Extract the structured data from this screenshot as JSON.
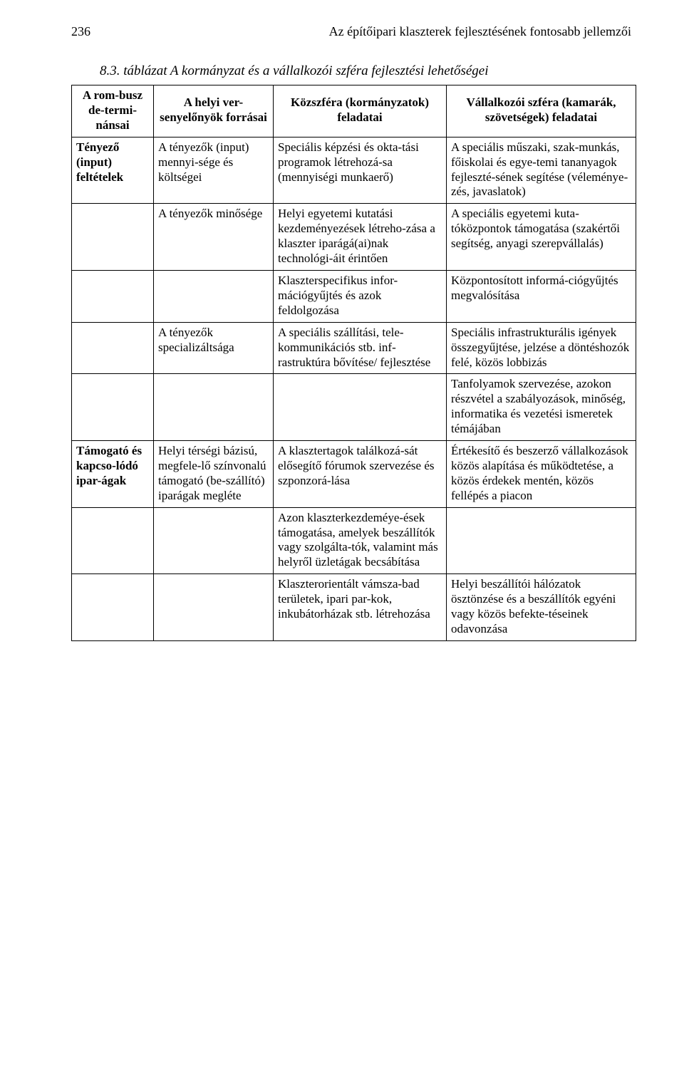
{
  "page_number": "236",
  "running_title": "Az építőipari klaszterek fejlesztésének fontosabb jellemzői",
  "caption": "8.3. táblázat A kormányzat és a vállalkozói szféra fejlesztési lehetőségei",
  "headers": {
    "col0": "A rom-busz de-termi-nánsai",
    "col1": "A helyi ver-senyelőnyök forrásai",
    "col2": "Közszféra (kormányzatok) feladatai",
    "col3": "Vállalkozói szféra (kamarák, szövetségek) feladatai"
  },
  "rows": [
    {
      "c0": "Tényező (input) feltételek",
      "c1": "A tényezők (input) mennyi-sége és költségei",
      "c2": "Speciális képzési és okta-tási programok létrehozá-sa (mennyiségi munkaerő)",
      "c3": "A speciális műszaki, szak-munkás, főiskolai és egye-temi tananyagok fejleszté-sének segítése (véleménye-zés, javaslatok)"
    },
    {
      "c0": "",
      "c1": "A tényezők minősége",
      "c2": "Helyi egyetemi kutatási kezdeményezések létreho-zása a klaszter iparágá(ai)nak technológi-áit érintően",
      "c3": "A speciális egyetemi kuta-tóközpontok támogatása (szakértői segítség, anyagi szerepvállalás)"
    },
    {
      "c0": "",
      "c1": "",
      "c2": "Klaszterspecifikus infor-mációgyűjtés és azok feldolgozása",
      "c3": "Központosított informá-ciógyűjtés megvalósítása"
    },
    {
      "c0": "",
      "c1": "A tényezők specializáltsága",
      "c2": "A speciális szállítási, tele-kommunikációs stb. inf-rastruktúra bővítése/ fejlesztése",
      "c3": "Speciális infrastrukturális igények összegyűjtése, jelzése a döntéshozók felé, közös lobbizás"
    },
    {
      "c0": "",
      "c1": "",
      "c2": "",
      "c3": "Tanfolyamok szervezése, azokon részvétel a szabályozások, minőség, informatika és vezetési ismeretek témájában"
    },
    {
      "c0": "Támogató és kapcso-lódó ipar-ágak",
      "c1": "Helyi térségi bázisú, megfele-lő színvonalú támogató (be-szállító) iparágak megléte",
      "c2": "A klasztertagok találkozá-sát elősegítő fórumok szervezése és szponzorá-lása",
      "c3": "Értékesítő és beszerző vállalkozások közös alapítása és működtetése, a közös érdekek mentén, közös fellépés a piacon"
    },
    {
      "c0": "",
      "c1": "",
      "c2": "Azon klaszterkezdeméye-ések támogatása, amelyek beszállítók vagy szolgálta-tók, valamint más helyről üzletágak becsábítása",
      "c3": ""
    },
    {
      "c0": "",
      "c1": "",
      "c2": "Klaszterorientált vámsza-bad területek, ipari par-kok, inkubátorházak stb. létrehozása",
      "c3": "Helyi beszállítói hálózatok ösztönzése és a beszállítók egyéni vagy közös befekte-téseinek odavonzása"
    }
  ]
}
